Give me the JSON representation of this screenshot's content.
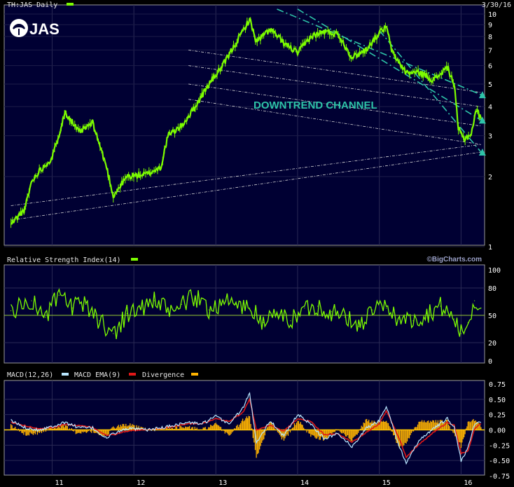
{
  "chart_data": [
    {
      "type": "line",
      "panel": "price",
      "ticker_label": "TH:JAS Daily",
      "date_label": "3/30/16",
      "logo_text": "JAS",
      "annotation": "DOWNTREND CHANNEL",
      "x_tick_labels": [
        "11",
        "12",
        "13",
        "14",
        "15",
        "16"
      ],
      "y_tick_labels": [
        "10",
        "9",
        "8",
        "7",
        "6",
        "5",
        "4",
        "3",
        "2",
        "1"
      ],
      "y_scale": "log",
      "ylim": [
        1,
        10
      ],
      "series_color": "#7cfc00",
      "channel_color": "#2ec4a8",
      "close_points": [
        {
          "x": "2010-07",
          "y": 1.25
        },
        {
          "x": "2010-09",
          "y": 1.45
        },
        {
          "x": "2010-10",
          "y": 1.9
        },
        {
          "x": "2010-11",
          "y": 2.1
        },
        {
          "x": "2011-01",
          "y": 2.4
        },
        {
          "x": "2011-03",
          "y": 3.8
        },
        {
          "x": "2011-05",
          "y": 3.1
        },
        {
          "x": "2011-07",
          "y": 3.4
        },
        {
          "x": "2011-09",
          "y": 2.2
        },
        {
          "x": "2011-10",
          "y": 1.65
        },
        {
          "x": "2011-12",
          "y": 2.0
        },
        {
          "x": "2012-03",
          "y": 2.05
        },
        {
          "x": "2012-05",
          "y": 2.2
        },
        {
          "x": "2012-06",
          "y": 3.0
        },
        {
          "x": "2012-08",
          "y": 3.3
        },
        {
          "x": "2012-10",
          "y": 4.0
        },
        {
          "x": "2012-12",
          "y": 5.0
        },
        {
          "x": "2013-02",
          "y": 6.0
        },
        {
          "x": "2013-04",
          "y": 7.5
        },
        {
          "x": "2013-06",
          "y": 9.5
        },
        {
          "x": "2013-07",
          "y": 7.6
        },
        {
          "x": "2013-09",
          "y": 8.6
        },
        {
          "x": "2013-11",
          "y": 7.5
        },
        {
          "x": "2014-01",
          "y": 6.8
        },
        {
          "x": "2014-03",
          "y": 8.0
        },
        {
          "x": "2014-05",
          "y": 8.4
        },
        {
          "x": "2014-07",
          "y": 8.2
        },
        {
          "x": "2014-09",
          "y": 6.5
        },
        {
          "x": "2014-11",
          "y": 7.0
        },
        {
          "x": "2015-01",
          "y": 8.3
        },
        {
          "x": "2015-02",
          "y": 8.8
        },
        {
          "x": "2015-03",
          "y": 6.8
        },
        {
          "x": "2015-05",
          "y": 5.6
        },
        {
          "x": "2015-07",
          "y": 5.6
        },
        {
          "x": "2015-09",
          "y": 5.2
        },
        {
          "x": "2015-11",
          "y": 5.9
        },
        {
          "x": "2015-12",
          "y": 5.0
        },
        {
          "x": "2015-12-20",
          "y": 3.2
        },
        {
          "x": "2016-01-15",
          "y": 2.9
        },
        {
          "x": "2016-02-15",
          "y": 3.05
        },
        {
          "x": "2016-03-10",
          "y": 3.9
        },
        {
          "x": "2016-03-30",
          "y": 3.55
        }
      ],
      "channel_lines": [
        {
          "name": "upper",
          "from": {
            "x": "2013-10",
            "y": 10.5
          },
          "to": {
            "x": "2016-03-30",
            "y": 4.5
          }
        },
        {
          "name": "middle",
          "from": {
            "x": "2014-01",
            "y": 10.5
          },
          "to": {
            "x": "2016-03-30",
            "y": 3.5
          }
        },
        {
          "name": "lower",
          "from": {
            "x": "2015-01",
            "y": 8.5
          },
          "to": {
            "x": "2016-03-30",
            "y": 2.55
          }
        }
      ],
      "support_resistance_lines": [
        {
          "from": {
            "x": "2010-07",
            "y": 1.3
          },
          "to": {
            "x": "2016-03-30",
            "y": 2.55
          }
        },
        {
          "from": {
            "x": "2010-07",
            "y": 1.5
          },
          "to": {
            "x": "2016-03-30",
            "y": 2.75
          }
        },
        {
          "from": {
            "x": "2012-09",
            "y": 7.0
          },
          "to": {
            "x": "2016-03-30",
            "y": 4.6
          }
        },
        {
          "from": {
            "x": "2012-09",
            "y": 6.0
          },
          "to": {
            "x": "2016-03-30",
            "y": 4.0
          }
        },
        {
          "from": {
            "x": "2012-09",
            "y": 5.0
          },
          "to": {
            "x": "2016-03-30",
            "y": 3.3
          }
        },
        {
          "from": {
            "x": "2012-09",
            "y": 4.3
          },
          "to": {
            "x": "2016-03-30",
            "y": 2.75
          }
        }
      ]
    },
    {
      "type": "line",
      "panel": "rsi",
      "title": "Relative Strength Index(14)",
      "watermark": "©BigCharts.com",
      "y_tick_labels": [
        "100",
        "80",
        "50",
        "20",
        "0"
      ],
      "ylim": [
        0,
        100
      ],
      "reference_line": 50,
      "series_color": "#7cfc00",
      "points": [
        {
          "x": "2010-07",
          "y": 55
        },
        {
          "x": "2010-10",
          "y": 66
        },
        {
          "x": "2010-12",
          "y": 48
        },
        {
          "x": "2011-02",
          "y": 72
        },
        {
          "x": "2011-04",
          "y": 58
        },
        {
          "x": "2011-06",
          "y": 62
        },
        {
          "x": "2011-08",
          "y": 44
        },
        {
          "x": "2011-10",
          "y": 30
        },
        {
          "x": "2011-12",
          "y": 52
        },
        {
          "x": "2012-02",
          "y": 58
        },
        {
          "x": "2012-04",
          "y": 66
        },
        {
          "x": "2012-06",
          "y": 54
        },
        {
          "x": "2012-08",
          "y": 62
        },
        {
          "x": "2012-10",
          "y": 70
        },
        {
          "x": "2012-12",
          "y": 56
        },
        {
          "x": "2013-02",
          "y": 66
        },
        {
          "x": "2013-04",
          "y": 62
        },
        {
          "x": "2013-06",
          "y": 58
        },
        {
          "x": "2013-08",
          "y": 42
        },
        {
          "x": "2013-10",
          "y": 52
        },
        {
          "x": "2013-12",
          "y": 44
        },
        {
          "x": "2014-02",
          "y": 58
        },
        {
          "x": "2014-04",
          "y": 60
        },
        {
          "x": "2014-06",
          "y": 54
        },
        {
          "x": "2014-08",
          "y": 48
        },
        {
          "x": "2014-10",
          "y": 38
        },
        {
          "x": "2014-12",
          "y": 56
        },
        {
          "x": "2015-02",
          "y": 58
        },
        {
          "x": "2015-04",
          "y": 46
        },
        {
          "x": "2015-06",
          "y": 44
        },
        {
          "x": "2015-08",
          "y": 52
        },
        {
          "x": "2015-10",
          "y": 60
        },
        {
          "x": "2015-12",
          "y": 46
        },
        {
          "x": "2016-01",
          "y": 30
        },
        {
          "x": "2016-02",
          "y": 42
        },
        {
          "x": "2016-03",
          "y": 66
        },
        {
          "x": "2016-03-30",
          "y": 58
        }
      ]
    },
    {
      "type": "line",
      "panel": "macd",
      "legend": [
        {
          "label": "MACD(12,26)",
          "color": "#b8e6ff"
        },
        {
          "label": "MACD EMA(9)",
          "color": "#e01818"
        },
        {
          "label": "Divergence",
          "color": "#ffb300"
        }
      ],
      "y_tick_labels": [
        "0.75",
        "0.50",
        "0.25",
        "0.00",
        "-0.25",
        "-0.50",
        "-0.75"
      ],
      "ylim": [
        -0.75,
        0.75
      ],
      "macd_points": [
        {
          "x": "2010-07",
          "y": 0.15
        },
        {
          "x": "2010-09",
          "y": 0.04
        },
        {
          "x": "2010-11",
          "y": 0.0
        },
        {
          "x": "2011-01",
          "y": 0.06
        },
        {
          "x": "2011-03",
          "y": 0.12
        },
        {
          "x": "2011-05",
          "y": 0.04
        },
        {
          "x": "2011-07",
          "y": 0.03
        },
        {
          "x": "2011-09",
          "y": -0.14
        },
        {
          "x": "2011-10",
          "y": -0.06
        },
        {
          "x": "2011-12",
          "y": 0.02
        },
        {
          "x": "2012-03",
          "y": 0.0
        },
        {
          "x": "2012-05",
          "y": 0.03
        },
        {
          "x": "2012-07",
          "y": 0.08
        },
        {
          "x": "2012-09",
          "y": 0.12
        },
        {
          "x": "2012-11",
          "y": 0.1
        },
        {
          "x": "2013-01",
          "y": 0.22
        },
        {
          "x": "2013-03",
          "y": 0.1
        },
        {
          "x": "2013-05",
          "y": 0.35
        },
        {
          "x": "2013-06",
          "y": 0.6
        },
        {
          "x": "2013-07",
          "y": -0.2
        },
        {
          "x": "2013-09",
          "y": 0.15
        },
        {
          "x": "2013-11",
          "y": -0.1
        },
        {
          "x": "2014-01",
          "y": 0.25
        },
        {
          "x": "2014-03",
          "y": 0.1
        },
        {
          "x": "2014-05",
          "y": -0.15
        },
        {
          "x": "2014-07",
          "y": -0.05
        },
        {
          "x": "2014-09",
          "y": -0.28
        },
        {
          "x": "2014-11",
          "y": 0.02
        },
        {
          "x": "2015-01",
          "y": 0.15
        },
        {
          "x": "2015-02",
          "y": 0.4
        },
        {
          "x": "2015-04",
          "y": -0.28
        },
        {
          "x": "2015-05",
          "y": -0.55
        },
        {
          "x": "2015-07",
          "y": -0.15
        },
        {
          "x": "2015-09",
          "y": 0.02
        },
        {
          "x": "2015-11",
          "y": 0.18
        },
        {
          "x": "2015-12",
          "y": 0.05
        },
        {
          "x": "2016-01",
          "y": -0.5
        },
        {
          "x": "2016-02",
          "y": -0.3
        },
        {
          "x": "2016-03",
          "y": 0.1
        },
        {
          "x": "2016-03-30",
          "y": 0.12
        }
      ],
      "ema_points": [
        {
          "x": "2010-07",
          "y": 0.12
        },
        {
          "x": "2010-09",
          "y": 0.07
        },
        {
          "x": "2010-11",
          "y": 0.02
        },
        {
          "x": "2011-01",
          "y": 0.04
        },
        {
          "x": "2011-03",
          "y": 0.09
        },
        {
          "x": "2011-05",
          "y": 0.07
        },
        {
          "x": "2011-07",
          "y": 0.04
        },
        {
          "x": "2011-09",
          "y": -0.09
        },
        {
          "x": "2011-10",
          "y": -0.08
        },
        {
          "x": "2011-12",
          "y": -0.02
        },
        {
          "x": "2012-03",
          "y": 0.0
        },
        {
          "x": "2012-05",
          "y": 0.02
        },
        {
          "x": "2012-07",
          "y": 0.06
        },
        {
          "x": "2012-09",
          "y": 0.1
        },
        {
          "x": "2012-11",
          "y": 0.1
        },
        {
          "x": "2013-01",
          "y": 0.18
        },
        {
          "x": "2013-03",
          "y": 0.14
        },
        {
          "x": "2013-05",
          "y": 0.28
        },
        {
          "x": "2013-06",
          "y": 0.5
        },
        {
          "x": "2013-07",
          "y": 0.0
        },
        {
          "x": "2013-09",
          "y": 0.08
        },
        {
          "x": "2013-11",
          "y": -0.02
        },
        {
          "x": "2014-01",
          "y": 0.18
        },
        {
          "x": "2014-03",
          "y": 0.14
        },
        {
          "x": "2014-05",
          "y": -0.08
        },
        {
          "x": "2014-07",
          "y": -0.06
        },
        {
          "x": "2014-09",
          "y": -0.2
        },
        {
          "x": "2014-11",
          "y": -0.05
        },
        {
          "x": "2015-01",
          "y": 0.1
        },
        {
          "x": "2015-02",
          "y": 0.32
        },
        {
          "x": "2015-04",
          "y": -0.15
        },
        {
          "x": "2015-05",
          "y": -0.45
        },
        {
          "x": "2015-07",
          "y": -0.22
        },
        {
          "x": "2015-09",
          "y": -0.04
        },
        {
          "x": "2015-11",
          "y": 0.12
        },
        {
          "x": "2015-12",
          "y": 0.08
        },
        {
          "x": "2016-01",
          "y": -0.38
        },
        {
          "x": "2016-02",
          "y": -0.35
        },
        {
          "x": "2016-03",
          "y": 0.02
        },
        {
          "x": "2016-03-30",
          "y": 0.1
        }
      ]
    }
  ]
}
